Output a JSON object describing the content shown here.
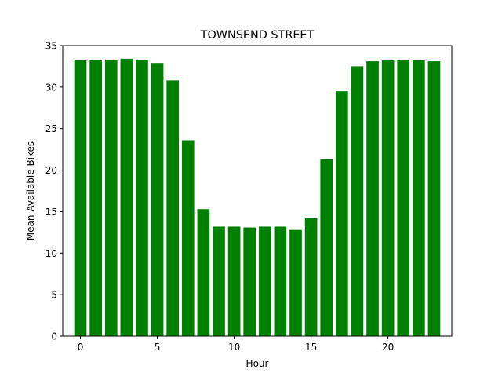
{
  "chart_data": {
    "type": "bar",
    "title": "TOWNSEND STREET",
    "xlabel": "Hour",
    "ylabel": "Mean Available Bikes",
    "x": [
      0,
      1,
      2,
      3,
      4,
      5,
      6,
      7,
      8,
      9,
      10,
      11,
      12,
      13,
      14,
      15,
      16,
      17,
      18,
      19,
      20,
      21,
      22,
      23
    ],
    "values": [
      33.3,
      33.2,
      33.3,
      33.4,
      33.2,
      32.9,
      30.8,
      23.6,
      15.3,
      13.2,
      13.2,
      13.1,
      13.2,
      13.2,
      12.8,
      14.2,
      21.3,
      29.5,
      32.5,
      33.1,
      33.2,
      33.2,
      33.3,
      33.1
    ],
    "xlim": [
      -1.15,
      24.15
    ],
    "ylim": [
      0,
      35
    ],
    "xticks": [
      0,
      5,
      10,
      15,
      20
    ],
    "yticks": [
      0,
      5,
      10,
      15,
      20,
      25,
      30,
      35
    ],
    "bar_color": "#008000",
    "grid": false,
    "legend": "none"
  }
}
